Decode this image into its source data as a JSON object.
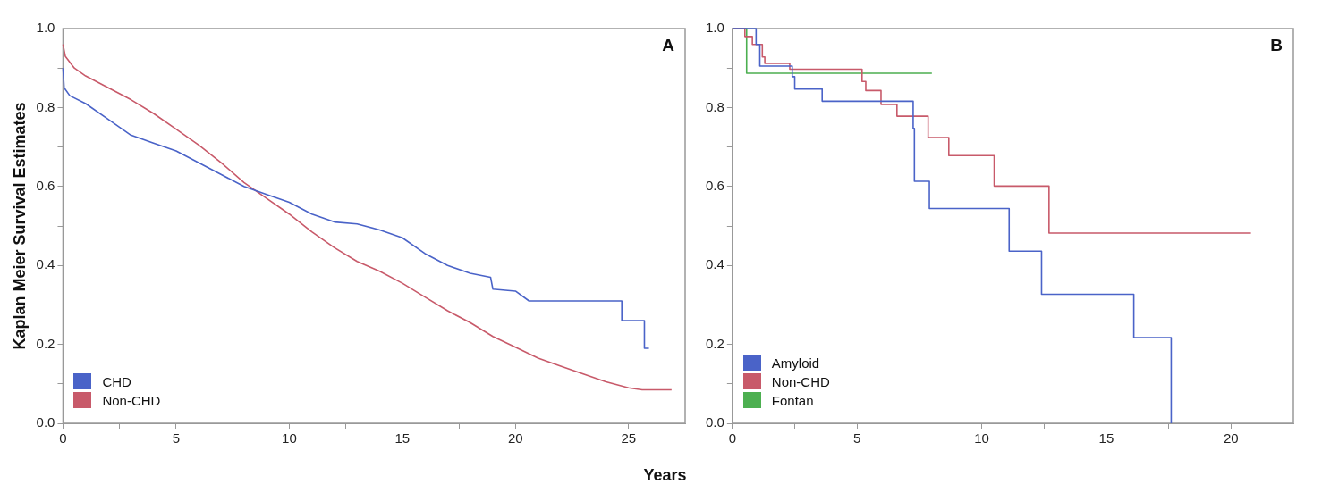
{
  "chart_data": [
    {
      "type": "line",
      "ylabel": "Kaplan Meier Survival Estimates",
      "xlabel": "Years",
      "annotations": [
        "A"
      ],
      "legend": "bottom left",
      "grid": false,
      "marker": "none",
      "xlim": [
        0,
        27.5
      ],
      "xticks": [
        0,
        {
          "value": 2.5,
          "label": null
        },
        5,
        {
          "value": 7.5,
          "label": null
        },
        10,
        {
          "value": 12.5,
          "label": null
        },
        15,
        {
          "value": 17.5,
          "label": null
        },
        20,
        {
          "value": 22.5,
          "label": null
        },
        25
      ],
      "ylim": [
        0,
        1
      ],
      "yticks": [
        {
          "value": 0,
          "label": "0.0"
        },
        {
          "value": 0.1,
          "label": null
        },
        0.2,
        {
          "value": 0.3,
          "label": null
        },
        0.4,
        {
          "value": 0.5,
          "label": null
        },
        0.6,
        {
          "value": 0.7,
          "label": null
        },
        0.8,
        {
          "value": 0.9,
          "label": null
        },
        {
          "value": 1,
          "label": "1.0"
        }
      ],
      "series": [
        {
          "name": "CHD",
          "color": "#4a63c8",
          "x": [
            0,
            0.05,
            0.3,
            1,
            2,
            3,
            4,
            5,
            6,
            7,
            8,
            9,
            10,
            11,
            12,
            13,
            14,
            15,
            16,
            17,
            18,
            18.9,
            19,
            20,
            20.6,
            24.7,
            24.7,
            25.7,
            25.7,
            25.9
          ],
          "values": [
            0.9,
            0.85,
            0.83,
            0.81,
            0.77,
            0.73,
            0.71,
            0.69,
            0.66,
            0.63,
            0.6,
            0.58,
            0.56,
            0.53,
            0.51,
            0.505,
            0.49,
            0.47,
            0.43,
            0.4,
            0.38,
            0.37,
            0.34,
            0.335,
            0.31,
            0.31,
            0.26,
            0.26,
            0.19,
            0.19
          ]
        },
        {
          "name": "Non-CHD",
          "color": "#c85a6a",
          "x": [
            0,
            0.1,
            0.5,
            1,
            2,
            3,
            4,
            5,
            6,
            7,
            8,
            9,
            10,
            11,
            12,
            13,
            14,
            15,
            16,
            17,
            18,
            19,
            20,
            21,
            22,
            23,
            24,
            25,
            25.6,
            26.9
          ],
          "values": [
            0.96,
            0.93,
            0.9,
            0.88,
            0.85,
            0.82,
            0.785,
            0.745,
            0.705,
            0.66,
            0.61,
            0.57,
            0.53,
            0.485,
            0.445,
            0.41,
            0.385,
            0.355,
            0.32,
            0.285,
            0.255,
            0.22,
            0.193,
            0.165,
            0.145,
            0.125,
            0.105,
            0.09,
            0.085,
            0.085
          ]
        }
      ]
    },
    {
      "type": "step",
      "annotations": [
        "B"
      ],
      "legend": "bottom left",
      "grid": false,
      "marker": "none",
      "xlim": [
        0,
        22.5
      ],
      "xticks": [
        0,
        {
          "value": 2.5,
          "label": null
        },
        5,
        {
          "value": 7.5,
          "label": null
        },
        10,
        {
          "value": 12.5,
          "label": null
        },
        15,
        {
          "value": 17.5,
          "label": null
        },
        20
      ],
      "ylim": [
        0,
        1
      ],
      "yticks": [
        {
          "value": 0,
          "label": "0.0"
        },
        {
          "value": 0.1,
          "label": null
        },
        0.2,
        {
          "value": 0.3,
          "label": null
        },
        0.4,
        {
          "value": 0.5,
          "label": null
        },
        0.6,
        {
          "value": 0.7,
          "label": null
        },
        0.8,
        {
          "value": 0.9,
          "label": null
        },
        {
          "value": 1,
          "label": "1.0"
        }
      ],
      "series": [
        {
          "name": "Amyloid",
          "color": "#4a63c8",
          "x": [
            0,
            0.95,
            1.1,
            2.4,
            2.5,
            3.6,
            7.1,
            7.25,
            7.3,
            7.9,
            11.1,
            12.4,
            16.1,
            17.6
          ],
          "values": [
            1,
            0.96,
            0.905,
            0.878,
            0.847,
            0.816,
            0.816,
            0.747,
            0.613,
            0.544,
            0.436,
            0.327,
            0.217,
            0
          ]
        },
        {
          "name": "Non-CHD",
          "color": "#c85a6a",
          "x": [
            0,
            0.5,
            0.8,
            1.2,
            1.3,
            2.3,
            5.2,
            5.35,
            5.96,
            6.6,
            7.85,
            8.68,
            10.5,
            12.7,
            20.8
          ],
          "values": [
            1,
            0.98,
            0.96,
            0.928,
            0.912,
            0.897,
            0.866,
            0.843,
            0.808,
            0.778,
            0.724,
            0.678,
            0.601,
            0.482,
            0.482
          ]
        },
        {
          "name": "Fontan",
          "color": "#4caf50",
          "x": [
            0,
            0.57,
            8
          ],
          "values": [
            1,
            0.887,
            0.887
          ]
        }
      ]
    }
  ]
}
